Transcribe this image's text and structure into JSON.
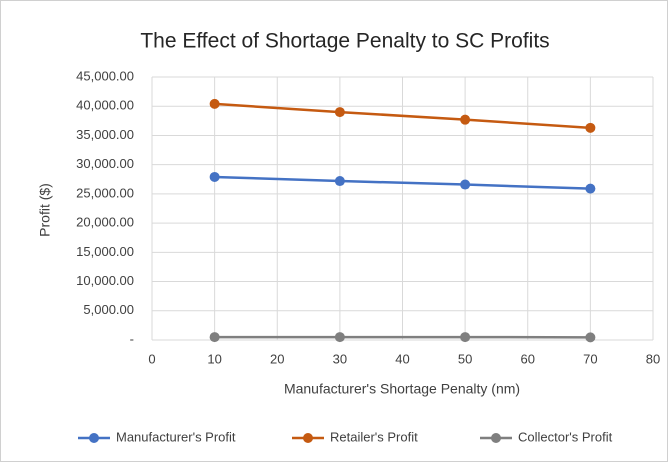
{
  "chart_data": {
    "type": "line",
    "title": "The Effect of Shortage Penalty to SC Profits",
    "x_label": "Manufacturer's Shortage Penalty (nm)",
    "y_label": "Profit ($)",
    "x": [
      10,
      30,
      50,
      70
    ],
    "series": [
      {
        "name": "Manufacturer's Profit",
        "color": "#4472c4",
        "values": [
          27900,
          27200,
          26600,
          25900
        ]
      },
      {
        "name": "Retailer's Profit",
        "color": "#c55a11",
        "values": [
          40400,
          39000,
          37700,
          36300
        ]
      },
      {
        "name": "Collector's Profit",
        "color": "#7f7f7f",
        "values": [
          500,
          500,
          500,
          450
        ]
      }
    ],
    "xlim": [
      0,
      80
    ],
    "xticks": [
      0,
      10,
      20,
      30,
      40,
      50,
      60,
      70,
      80
    ],
    "ylim": [
      0,
      45000
    ],
    "yticks": [
      {
        "value": 0,
        "label": "-"
      },
      {
        "value": 5000,
        "label": "5,000.00"
      },
      {
        "value": 10000,
        "label": "10,000.00"
      },
      {
        "value": 15000,
        "label": "15,000.00"
      },
      {
        "value": 20000,
        "label": "20,000.00"
      },
      {
        "value": 25000,
        "label": "25,000.00"
      },
      {
        "value": 30000,
        "label": "30,000.00"
      },
      {
        "value": 35000,
        "label": "35,000.00"
      },
      {
        "value": 40000,
        "label": "40,000.00"
      },
      {
        "value": 45000,
        "label": "45,000.00"
      }
    ],
    "grid": true,
    "legend": "bottom"
  }
}
